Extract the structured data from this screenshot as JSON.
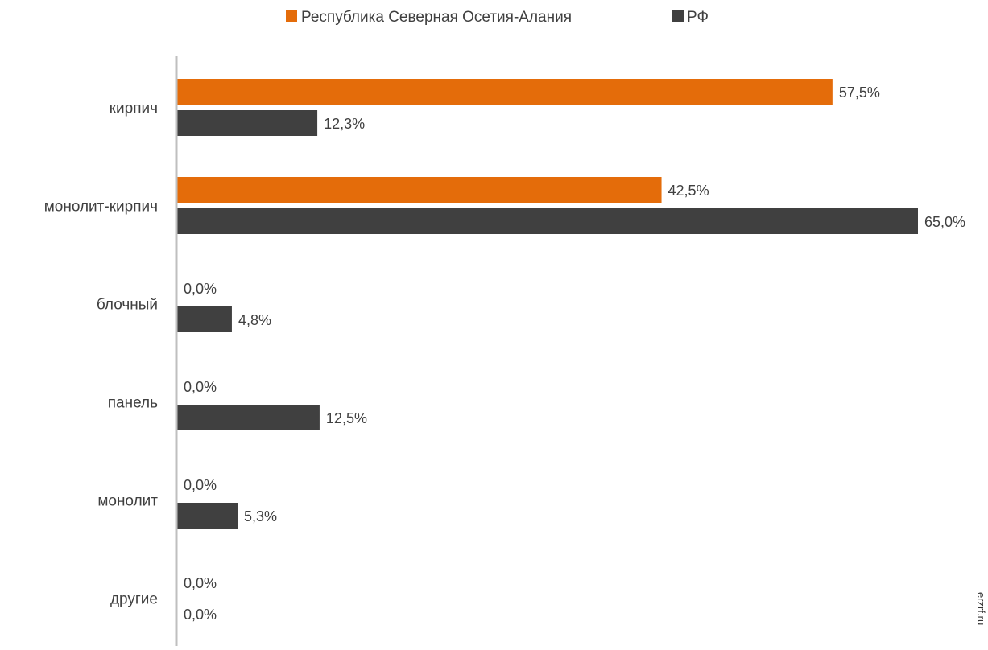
{
  "chart_data": {
    "type": "bar",
    "orientation": "horizontal",
    "title": "",
    "xlabel": "",
    "ylabel": "",
    "categories": [
      "кирпич",
      "монолит-кирпич",
      "блочный",
      "панель",
      "монолит",
      "другие"
    ],
    "series": [
      {
        "name": "Республика Северная Осетия-Алания",
        "color": "#E46C0A",
        "values": [
          57.5,
          42.5,
          0.0,
          0.0,
          0.0,
          0.0
        ],
        "labels": [
          "57,5%",
          "42,5%",
          "0,0%",
          "0,0%",
          "0,0%",
          "0,0%"
        ]
      },
      {
        "name": "РФ",
        "color": "#404040",
        "values": [
          12.3,
          65.0,
          4.8,
          12.5,
          5.3,
          0.0
        ],
        "labels": [
          "12,3%",
          "65,0%",
          "4,8%",
          "12,5%",
          "5,3%",
          "0,0%"
        ]
      }
    ],
    "xlim": [
      0,
      65
    ],
    "grid": false,
    "legend": "top-center",
    "axis_color": "#BFBFBF"
  },
  "watermark": "erzrf.ru"
}
